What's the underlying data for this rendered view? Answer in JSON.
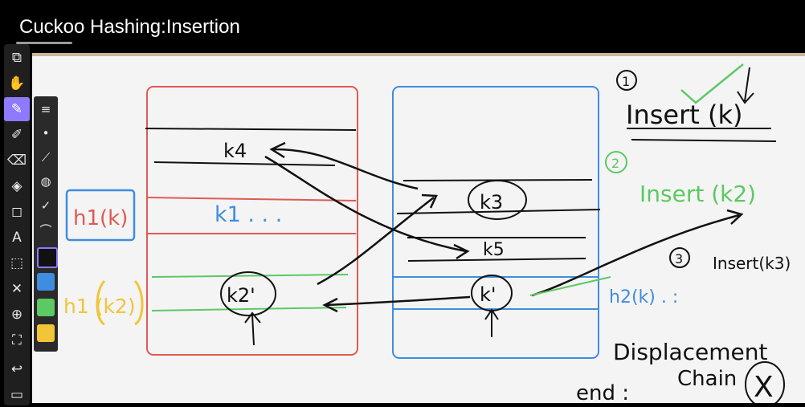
{
  "title": "Cuckoo Hashing:Insertion",
  "colors": {
    "table1": "#e05a52",
    "table2": "#3f8de0",
    "green": "#5cc963",
    "yellow": "#f2c438",
    "ink": "#111111",
    "toolbar": "#1f1f1f",
    "accent": "#8e79ff"
  },
  "table1": {
    "slots": [
      "k4",
      "k1 . . .",
      "k2'"
    ],
    "k4": "k4",
    "k1": "k1 . . .",
    "k2": "k2'",
    "hash_label": "h1(k)",
    "hash_label_k2": "h1 (k2)"
  },
  "table2": {
    "k3": "k3",
    "k5": "k5",
    "k": "k'",
    "hash_label": "h2(k) . :"
  },
  "steps": {
    "step1_number": "1",
    "step1": "Insert (k)",
    "step2_number": "2",
    "step2": "Insert (k2)",
    "step3_number": "3",
    "step3": "Insert(k3)"
  },
  "notes": {
    "displacement": "Displacement",
    "chain": "Chain",
    "end": "end :",
    "cross": "X"
  },
  "toolbar": {
    "tools": [
      {
        "icon": "crop-icon",
        "glyph": "⧉"
      },
      {
        "icon": "hand-icon",
        "glyph": "✋"
      },
      {
        "icon": "pen-icon",
        "glyph": "✎"
      },
      {
        "icon": "marker-icon",
        "glyph": "✐"
      },
      {
        "icon": "eraser-icon",
        "glyph": "⌫"
      },
      {
        "icon": "fill-icon",
        "glyph": "◈"
      },
      {
        "icon": "shapes-icon",
        "glyph": "◻"
      },
      {
        "icon": "text-icon",
        "glyph": "A"
      },
      {
        "icon": "select-icon",
        "glyph": "⬚"
      },
      {
        "icon": "close-icon",
        "glyph": "✕"
      },
      {
        "icon": "target-icon",
        "glyph": "⊕"
      },
      {
        "icon": "fit-icon",
        "glyph": "⛶"
      },
      {
        "icon": "undo-icon",
        "glyph": "↩"
      },
      {
        "icon": "screen-icon",
        "glyph": "▭"
      }
    ],
    "subtools": [
      {
        "icon": "line-weight-icon",
        "glyph": "≡"
      },
      {
        "icon": "dot-icon",
        "glyph": "•"
      },
      {
        "icon": "stroke-icon",
        "glyph": "⟋"
      },
      {
        "icon": "opacity-icon",
        "glyph": "◍"
      },
      {
        "icon": "check-icon",
        "glyph": "✓"
      },
      {
        "icon": "curve-icon",
        "glyph": "⌒"
      }
    ],
    "swatches": [
      {
        "icon": "black-pen-swatch",
        "color": "#111111"
      },
      {
        "icon": "blue-pen-swatch",
        "color": "#3f8de0"
      },
      {
        "icon": "green-pen-swatch",
        "color": "#5cc963"
      },
      {
        "icon": "yellow-pen-swatch",
        "color": "#f2c438"
      }
    ]
  }
}
